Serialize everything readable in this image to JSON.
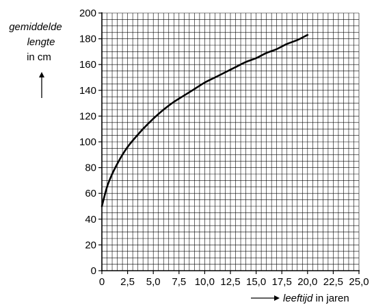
{
  "chart_data": {
    "type": "line",
    "title": "",
    "ylabel": {
      "line1": "gemiddelde",
      "line2": "lengte",
      "line3": "in cm"
    },
    "xlabel": {
      "italic": "leeftijd",
      "rest": " in jaren"
    },
    "xlim": [
      0,
      25
    ],
    "ylim": [
      0,
      200
    ],
    "grid": true,
    "grid_minor_x": 0.5,
    "grid_minor_y": 5,
    "x_ticks": [
      "0",
      "2,5",
      "5,0",
      "7,5",
      "10,0",
      "12,5",
      "15,0",
      "17,5",
      "20,0",
      "22,5",
      "25,0"
    ],
    "x_tick_values": [
      0,
      2.5,
      5,
      7.5,
      10,
      12.5,
      15,
      17.5,
      20,
      22.5,
      25
    ],
    "y_ticks": [
      "0",
      "20",
      "40",
      "60",
      "80",
      "100",
      "120",
      "140",
      "160",
      "180",
      "200"
    ],
    "y_tick_values": [
      0,
      20,
      40,
      60,
      80,
      100,
      120,
      140,
      160,
      180,
      200
    ],
    "series": [
      {
        "x": [
          0,
          0.5,
          1,
          1.5,
          2,
          2.5,
          3,
          4,
          5,
          6,
          7,
          8,
          9,
          10,
          11,
          12,
          13,
          14,
          15,
          16,
          17,
          18,
          19,
          20
        ],
        "y": [
          50,
          65,
          75,
          83,
          90,
          96,
          101,
          110,
          118,
          125,
          131,
          136,
          141,
          146,
          150,
          154,
          158,
          162,
          165,
          169,
          172,
          176,
          179,
          183
        ]
      }
    ]
  }
}
